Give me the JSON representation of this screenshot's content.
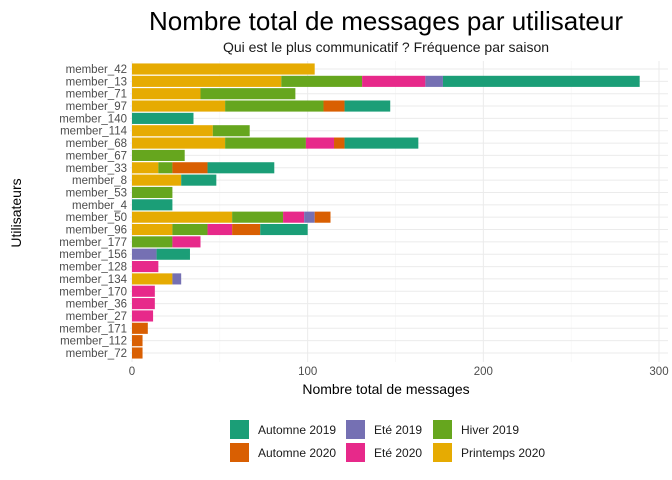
{
  "chart_data": {
    "type": "bar",
    "orientation": "horizontal",
    "stacked": true,
    "title": "Nombre total de messages par utilisateur",
    "subtitle": "Qui est le plus communicatif ? Fréquence par saison",
    "xlabel": "Nombre total de messages",
    "ylabel": "Utilisateurs",
    "xlim": [
      0,
      300
    ],
    "xticks": [
      0,
      100,
      200,
      300
    ],
    "grid": true,
    "legend_position": "bottom",
    "categories": [
      "member_42",
      "member_13",
      "member_71",
      "member_97",
      "member_140",
      "member_114",
      "member_68",
      "member_67",
      "member_33",
      "member_8",
      "member_53",
      "member_4",
      "member_50",
      "member_96",
      "member_177",
      "member_156",
      "member_128",
      "member_134",
      "member_170",
      "member_36",
      "member_27",
      "member_171",
      "member_112",
      "member_72"
    ],
    "stack_order": [
      "Printemps 2020",
      "Hiver 2019",
      "Eté 2020",
      "Eté 2019",
      "Automne 2020",
      "Automne 2019"
    ],
    "series": [
      {
        "name": "Automne 2019",
        "color": "#1b9e77",
        "values": [
          0,
          112,
          0,
          26,
          35,
          0,
          42,
          0,
          38,
          20,
          0,
          23,
          0,
          27,
          0,
          19,
          0,
          0,
          0,
          0,
          0,
          0,
          0,
          0
        ]
      },
      {
        "name": "Automne 2020",
        "color": "#d95f02",
        "values": [
          0,
          0,
          0,
          12,
          0,
          0,
          6,
          0,
          20,
          0,
          0,
          0,
          9,
          16,
          0,
          0,
          0,
          0,
          0,
          0,
          0,
          9,
          6,
          6
        ]
      },
      {
        "name": "Eté 2019",
        "color": "#7570b3",
        "values": [
          0,
          10,
          0,
          0,
          0,
          0,
          0,
          0,
          0,
          0,
          0,
          0,
          6,
          0,
          0,
          14,
          0,
          5,
          0,
          0,
          0,
          0,
          0,
          0
        ]
      },
      {
        "name": "Eté 2020",
        "color": "#e7298a",
        "values": [
          0,
          36,
          0,
          0,
          0,
          0,
          16,
          0,
          0,
          0,
          0,
          0,
          12,
          14,
          16,
          0,
          15,
          0,
          13,
          13,
          12,
          0,
          0,
          0
        ]
      },
      {
        "name": "Hiver 2019",
        "color": "#66a61e",
        "values": [
          0,
          46,
          54,
          56,
          0,
          21,
          46,
          30,
          8,
          0,
          23,
          0,
          29,
          20,
          23,
          0,
          0,
          0,
          0,
          0,
          0,
          0,
          0,
          0
        ]
      },
      {
        "name": "Printemps 2020",
        "color": "#e6ab02",
        "values": [
          104,
          85,
          39,
          53,
          0,
          46,
          53,
          0,
          15,
          28,
          0,
          0,
          57,
          23,
          0,
          0,
          0,
          23,
          0,
          0,
          0,
          0,
          0,
          0
        ]
      }
    ],
    "legend": [
      {
        "name": "Automne 2019",
        "color": "#1b9e77"
      },
      {
        "name": "Automne 2020",
        "color": "#d95f02"
      },
      {
        "name": "Eté 2019",
        "color": "#7570b3"
      },
      {
        "name": "Eté 2020",
        "color": "#e7298a"
      },
      {
        "name": "Hiver 2019",
        "color": "#66a61e"
      },
      {
        "name": "Printemps 2020",
        "color": "#e6ab02"
      }
    ]
  }
}
